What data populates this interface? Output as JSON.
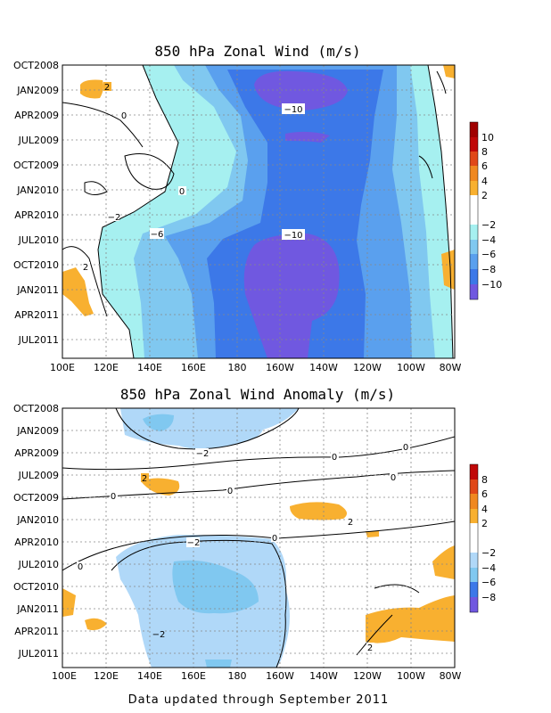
{
  "footer": "Data updated through September 2011",
  "colors": {
    "lt2": "#a6f0f0",
    "lt4": "#80c8f0",
    "lt6": "#5aa0ee",
    "lt8": "#3c78e8",
    "lt10": "#7058e0",
    "gt2": "#f8b030",
    "gt4": "#f08820",
    "gt6": "#e04818",
    "gt8": "#c00808",
    "gt10": "#a00000"
  },
  "chart_data": [
    {
      "type": "heatmap",
      "title": "850 hPa Zonal Wind (m/s)",
      "x_ticks": [
        "100E",
        "120E",
        "140E",
        "160E",
        "180",
        "160W",
        "140W",
        "120W",
        "100W",
        "80W"
      ],
      "y_ticks": [
        "OCT2008",
        "JAN2009",
        "APR2009",
        "JUL2009",
        "OCT2009",
        "JAN2010",
        "APR2010",
        "JUL2010",
        "OCT2010",
        "JAN2011",
        "APR2011",
        "JUL2011"
      ],
      "colorbar_labels": [
        "10",
        "8",
        "6",
        "4",
        "2",
        "−2",
        "−4",
        "−6",
        "−8",
        "−10"
      ],
      "contour_labels": [
        "2",
        "0",
        "0",
        "−2",
        "−6",
        "−10",
        "−10",
        "2"
      ],
      "grid": true
    },
    {
      "type": "heatmap",
      "title": "850 hPa Zonal Wind Anomaly (m/s)",
      "x_ticks": [
        "100E",
        "120E",
        "140E",
        "160E",
        "180",
        "160W",
        "140W",
        "120W",
        "100W",
        "80W"
      ],
      "y_ticks": [
        "OCT2008",
        "JAN2009",
        "APR2009",
        "JUL2009",
        "OCT2009",
        "JAN2010",
        "APR2010",
        "JUL2010",
        "OCT2010",
        "JAN2011",
        "APR2011",
        "JUL2011"
      ],
      "colorbar_labels": [
        "8",
        "6",
        "4",
        "2",
        "−2",
        "−4",
        "−6",
        "−8"
      ],
      "contour_labels": [
        "−2",
        "0",
        "0",
        "2",
        "0",
        "0",
        "2",
        "−2",
        "0",
        "0",
        "0",
        "−2",
        "2"
      ],
      "grid": true
    }
  ]
}
